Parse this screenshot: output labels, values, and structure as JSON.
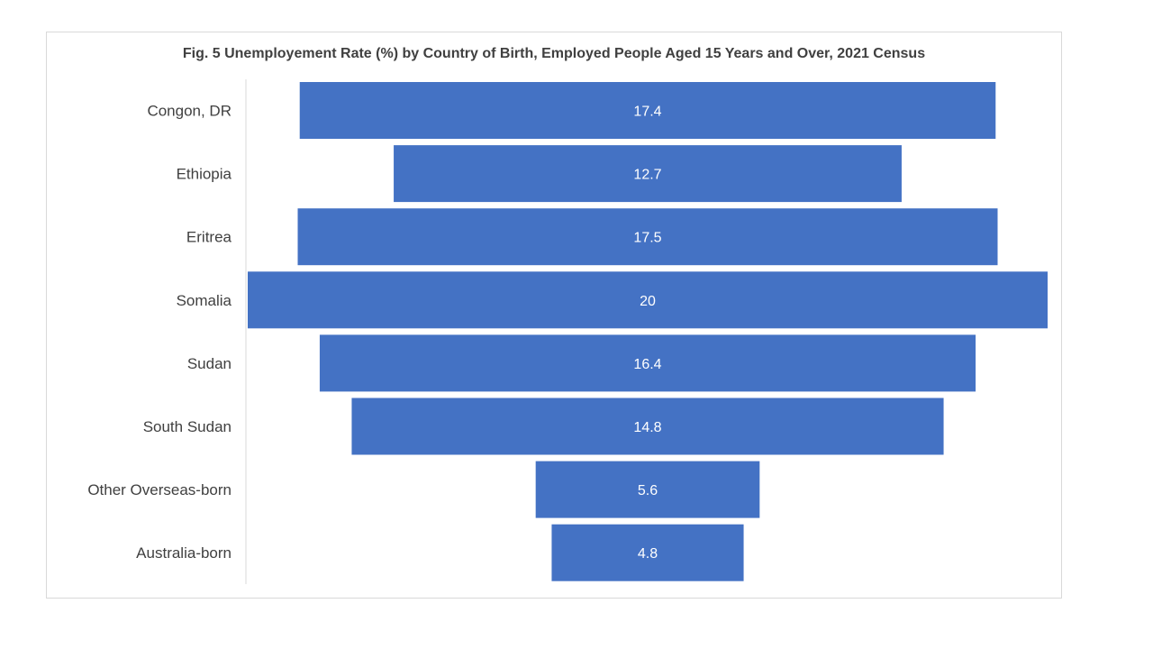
{
  "chart_data": {
    "type": "bar",
    "subtype": "funnel",
    "title": "Fig. 5 Unemployement Rate (%) by Country of Birth, Employed People Aged 15 Years and Over, 2021 Census",
    "categories": [
      "Congon, DR",
      "Ethiopia",
      "Eritrea",
      "Somalia",
      "Sudan",
      "South Sudan",
      "Other Overseas-born",
      "Australia-born"
    ],
    "values": [
      17.4,
      12.7,
      17.5,
      20,
      16.4,
      14.8,
      5.6,
      4.8
    ],
    "value_labels": [
      "17.4",
      "12.7",
      "17.5",
      "20",
      "16.4",
      "14.8",
      "5.6",
      "4.8"
    ],
    "xlabel": "",
    "ylabel": "",
    "grid": false,
    "legend": "none",
    "bar_color": "#4472c4"
  }
}
